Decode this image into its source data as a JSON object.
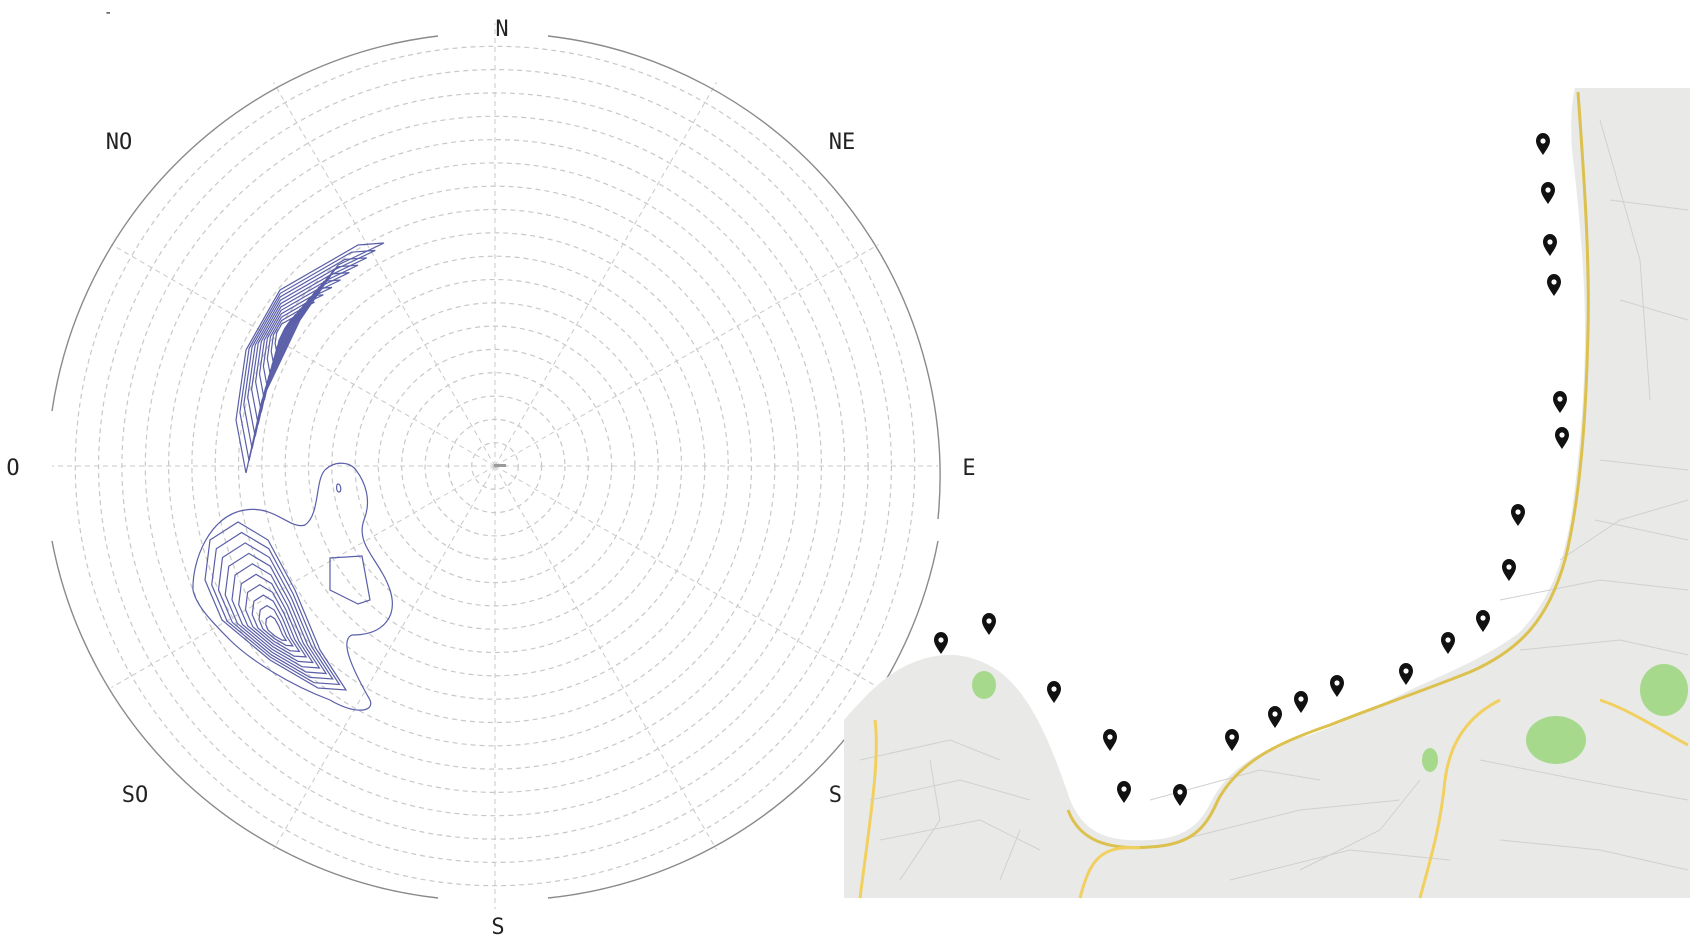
{
  "chart_data": {
    "type": "polar-contour",
    "directions": [
      "N",
      "NE",
      "E",
      "SE",
      "S",
      "SO",
      "O",
      "NO"
    ],
    "corner_mark": "-",
    "grid": true,
    "accent_color": "#5a5fa8"
  },
  "map": {
    "marker_count": 20,
    "marker_icon": "map-pin-icon",
    "marker_color": "#111111",
    "coast_color": "#dcc14e",
    "park_color": "#a6d98c"
  }
}
